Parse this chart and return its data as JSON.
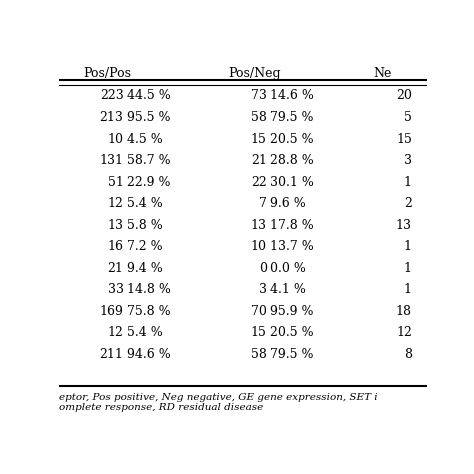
{
  "col_headers": [
    "Pos/Pos",
    "Pos/Neg",
    "Ne"
  ],
  "rows": [
    [
      "223",
      "44.5 %",
      "73",
      "14.6 %",
      "20"
    ],
    [
      "213",
      "95.5 %",
      "58",
      "79.5 %",
      "5"
    ],
    [
      "10",
      "4.5 %",
      "15",
      "20.5 %",
      "15"
    ],
    [
      "131",
      "58.7 %",
      "21",
      "28.8 %",
      "3"
    ],
    [
      "51",
      "22.9 %",
      "22",
      "30.1 %",
      "1"
    ],
    [
      "12",
      "5.4 %",
      "7",
      "9.6 %",
      "2"
    ],
    [
      "13",
      "5.8 %",
      "13",
      "17.8 %",
      "13"
    ],
    [
      "16",
      "7.2 %",
      "10",
      "13.7 %",
      "1"
    ],
    [
      "21",
      "9.4 %",
      "0",
      "0.0 %",
      "1"
    ],
    [
      "33",
      "14.8 %",
      "3",
      "4.1 %",
      "1"
    ],
    [
      "169",
      "75.8 %",
      "70",
      "95.9 %",
      "18"
    ],
    [
      "12",
      "5.4 %",
      "15",
      "20.5 %",
      "12"
    ],
    [
      "211",
      "94.6 %",
      "58",
      "79.5 %",
      "8"
    ]
  ],
  "footnote_lines": [
    "eptor, Pos positive, Neg negative, GE gene expression, SET i",
    "omplete response, RD residual disease"
  ],
  "bg_color": "#ffffff",
  "text_color": "#000000",
  "header_line_color": "#000000",
  "fontsize": 9,
  "header_fontsize": 9,
  "footnote_fontsize": 7.5
}
